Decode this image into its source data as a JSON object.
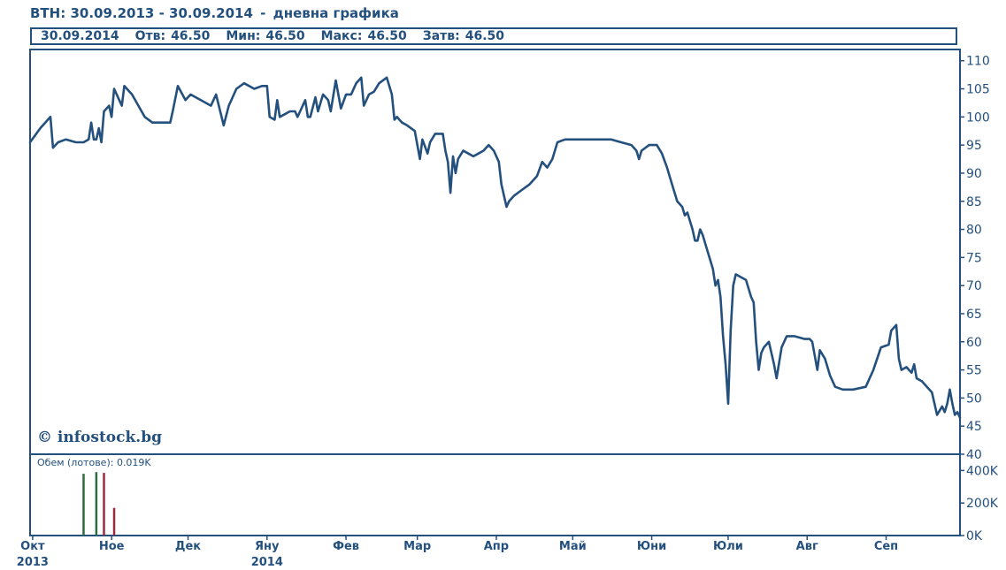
{
  "header": {
    "symbol": "BTH:",
    "range": "30.09.2013 - 30.09.2014",
    "separator": "-",
    "subtitle": "дневна графика"
  },
  "infobar": {
    "date": "30.09.2014",
    "open_label": "Отв:",
    "open_value": "46.50",
    "min_label": "Мин:",
    "min_value": "46.50",
    "max_label": "Макс:",
    "max_value": "46.50",
    "close_label": "Затв:",
    "close_value": "46.50"
  },
  "watermark": "© infostock.bg",
  "volume_label": "Обем (лотове): 0.019K",
  "colors": {
    "line": "#24507e",
    "frame": "#24507e",
    "volume_up": "#2e6b3e",
    "volume_down": "#9a2a3e"
  },
  "chart_data": {
    "type": "line",
    "title": "",
    "xlabel": "",
    "ylabel": "",
    "x_ticks": [
      {
        "label": "Окт",
        "sub": "2013",
        "day": 1
      },
      {
        "label": "Ное",
        "sub": "",
        "day": 32
      },
      {
        "label": "Дек",
        "sub": "",
        "day": 62
      },
      {
        "label": "Яну",
        "sub": "2014",
        "day": 93
      },
      {
        "label": "Фев",
        "sub": "",
        "day": 124
      },
      {
        "label": "Мар",
        "sub": "",
        "day": 152
      },
      {
        "label": "Апр",
        "sub": "",
        "day": 183
      },
      {
        "label": "Май",
        "sub": "",
        "day": 213
      },
      {
        "label": "Юни",
        "sub": "",
        "day": 244
      },
      {
        "label": "Юли",
        "sub": "",
        "day": 274
      },
      {
        "label": "Авг",
        "sub": "",
        "day": 305
      },
      {
        "label": "Сеп",
        "sub": "",
        "day": 336
      }
    ],
    "x_range": [
      0,
      365
    ],
    "y_ticks": [
      40,
      45,
      50,
      55,
      60,
      65,
      70,
      75,
      80,
      85,
      90,
      95,
      100,
      105,
      110
    ],
    "ylim": [
      40,
      112
    ],
    "grid": false,
    "series": [
      {
        "points": [
          [
            0,
            95.5
          ],
          [
            4,
            98
          ],
          [
            8,
            100
          ],
          [
            9,
            94.5
          ],
          [
            11,
            95.5
          ],
          [
            14,
            96
          ],
          [
            18,
            95.5
          ],
          [
            21,
            95.5
          ],
          [
            23,
            96
          ],
          [
            24,
            99
          ],
          [
            25,
            96
          ],
          [
            26,
            96
          ],
          [
            27,
            98
          ],
          [
            28,
            95.5
          ],
          [
            29,
            101
          ],
          [
            31,
            102
          ],
          [
            32,
            100
          ],
          [
            33,
            105
          ],
          [
            35,
            103
          ],
          [
            36,
            102
          ],
          [
            37,
            105.5
          ],
          [
            40,
            104
          ],
          [
            45,
            100
          ],
          [
            48,
            99
          ],
          [
            52,
            99
          ],
          [
            55,
            99
          ],
          [
            56,
            101
          ],
          [
            58,
            105.5
          ],
          [
            61,
            103
          ],
          [
            63,
            104
          ],
          [
            67,
            103
          ],
          [
            71,
            102
          ],
          [
            73,
            104
          ],
          [
            76,
            98.5
          ],
          [
            78,
            102
          ],
          [
            81,
            105
          ],
          [
            84,
            106
          ],
          [
            88,
            105
          ],
          [
            91,
            105.5
          ],
          [
            93,
            105.5
          ],
          [
            94,
            100
          ],
          [
            96,
            99.5
          ],
          [
            97,
            103
          ],
          [
            98,
            100
          ],
          [
            100,
            100.5
          ],
          [
            102,
            101
          ],
          [
            104,
            101
          ],
          [
            105,
            100
          ],
          [
            106,
            101
          ],
          [
            108,
            103
          ],
          [
            109,
            100
          ],
          [
            110,
            100
          ],
          [
            112,
            103.5
          ],
          [
            113,
            101
          ],
          [
            115,
            104
          ],
          [
            117,
            103
          ],
          [
            118,
            101
          ],
          [
            120,
            106.5
          ],
          [
            121,
            104
          ],
          [
            122,
            101.5
          ],
          [
            124,
            104
          ],
          [
            126,
            104
          ],
          [
            128,
            106
          ],
          [
            130,
            107
          ],
          [
            131,
            102
          ],
          [
            133,
            104
          ],
          [
            135,
            104.5
          ],
          [
            137,
            106
          ],
          [
            140,
            107
          ],
          [
            142,
            104
          ],
          [
            143,
            99.5
          ],
          [
            144,
            100
          ],
          [
            146,
            99
          ],
          [
            148,
            98.5
          ],
          [
            151,
            97.5
          ],
          [
            153,
            92.5
          ],
          [
            154,
            96
          ],
          [
            156,
            93.5
          ],
          [
            157,
            95.5
          ],
          [
            159,
            97
          ],
          [
            162,
            97
          ],
          [
            163,
            94
          ],
          [
            164,
            92
          ],
          [
            165,
            86.5
          ],
          [
            166,
            93
          ],
          [
            167,
            90
          ],
          [
            168,
            92.5
          ],
          [
            170,
            94
          ],
          [
            172,
            93.5
          ],
          [
            174,
            93
          ],
          [
            176,
            93.5
          ],
          [
            178,
            94
          ],
          [
            180,
            95
          ],
          [
            182,
            94
          ],
          [
            184,
            92
          ],
          [
            185,
            88
          ],
          [
            187,
            84
          ],
          [
            188,
            85
          ],
          [
            190,
            86
          ],
          [
            193,
            87
          ],
          [
            196,
            88
          ],
          [
            199,
            89.5
          ],
          [
            201,
            92
          ],
          [
            203,
            91
          ],
          [
            205,
            92.5
          ],
          [
            207,
            95.5
          ],
          [
            210,
            96
          ],
          [
            215,
            96
          ],
          [
            220,
            96
          ],
          [
            224,
            96
          ],
          [
            228,
            96
          ],
          [
            232,
            95.5
          ],
          [
            236,
            95
          ],
          [
            238,
            94
          ],
          [
            239,
            92.5
          ],
          [
            240,
            94
          ],
          [
            243,
            95
          ],
          [
            246,
            95
          ],
          [
            248,
            93.5
          ],
          [
            250,
            91
          ],
          [
            252,
            88
          ],
          [
            253,
            86.5
          ],
          [
            254,
            85
          ],
          [
            256,
            84
          ],
          [
            257,
            82.5
          ],
          [
            258,
            83
          ],
          [
            260,
            80
          ],
          [
            261,
            78
          ],
          [
            262,
            78
          ],
          [
            263,
            80
          ],
          [
            264,
            79
          ],
          [
            266,
            76
          ],
          [
            268,
            73
          ],
          [
            269,
            70
          ],
          [
            270,
            71
          ],
          [
            271,
            68
          ],
          [
            272,
            61
          ],
          [
            273,
            56
          ],
          [
            274,
            49
          ],
          [
            275,
            62
          ],
          [
            276,
            70
          ],
          [
            277,
            72
          ],
          [
            279,
            71.5
          ],
          [
            281,
            71
          ],
          [
            283,
            68
          ],
          [
            284,
            67
          ],
          [
            285,
            60
          ],
          [
            286,
            55
          ],
          [
            287,
            58
          ],
          [
            288,
            59
          ],
          [
            290,
            60
          ],
          [
            292,
            56
          ],
          [
            293,
            53.5
          ],
          [
            295,
            59
          ],
          [
            297,
            61
          ],
          [
            300,
            61
          ],
          [
            304,
            60.5
          ],
          [
            306,
            60.5
          ],
          [
            307,
            60
          ],
          [
            309,
            55
          ],
          [
            310,
            58.5
          ],
          [
            312,
            57
          ],
          [
            314,
            54
          ],
          [
            316,
            52
          ],
          [
            319,
            51.5
          ],
          [
            323,
            51.5
          ],
          [
            328,
            52
          ],
          [
            331,
            55
          ],
          [
            334,
            59
          ],
          [
            337,
            59.5
          ],
          [
            338,
            62
          ],
          [
            340,
            63
          ],
          [
            341,
            57
          ],
          [
            342,
            55
          ],
          [
            344,
            55.5
          ],
          [
            345,
            55
          ],
          [
            346,
            54.5
          ],
          [
            347,
            56
          ],
          [
            348,
            53.5
          ],
          [
            350,
            53
          ],
          [
            352,
            52
          ],
          [
            354,
            51
          ],
          [
            355,
            49
          ],
          [
            356,
            47
          ],
          [
            358,
            48.5
          ],
          [
            359,
            47.5
          ],
          [
            360,
            49
          ],
          [
            361,
            51.5
          ],
          [
            362,
            49
          ],
          [
            363,
            47
          ],
          [
            364,
            47.5
          ],
          [
            365,
            46.5
          ]
        ]
      }
    ],
    "volume": {
      "y_ticks_labels": [
        "400K",
        "200K",
        "0K"
      ],
      "y_ticks_values": [
        400,
        200,
        0
      ],
      "ylim": [
        0,
        500
      ],
      "bars": [
        {
          "day": 21,
          "value": 380,
          "dir": "up"
        },
        {
          "day": 26,
          "value": 390,
          "dir": "up"
        },
        {
          "day": 29,
          "value": 385,
          "dir": "down"
        },
        {
          "day": 33,
          "value": 170,
          "dir": "down"
        }
      ]
    }
  }
}
